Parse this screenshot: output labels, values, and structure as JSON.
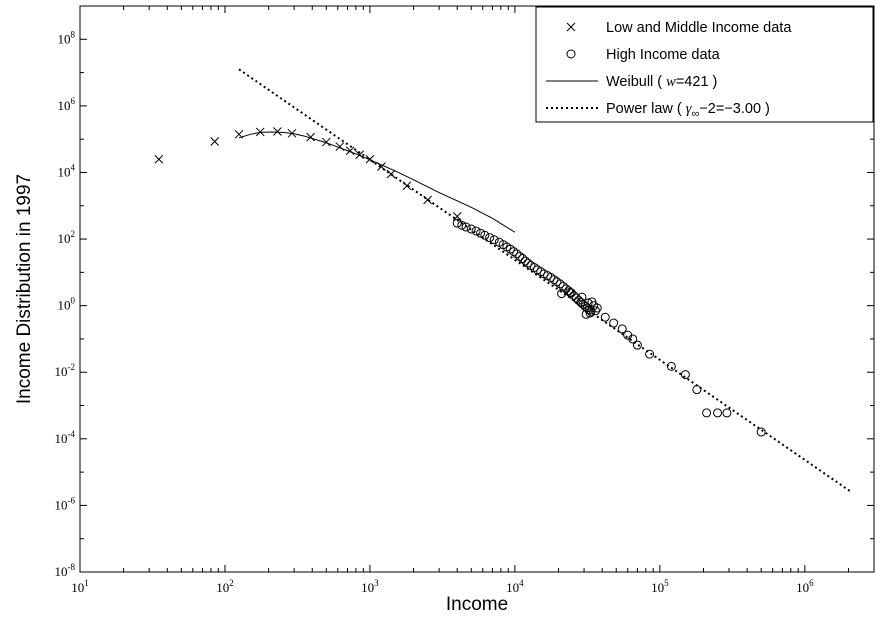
{
  "chart_data": {
    "type": "scatter",
    "xlabel": "Income",
    "ylabel": "Income Distribution in 1997",
    "x_scale": "log",
    "y_scale": "log",
    "xlim": [
      10,
      3000000
    ],
    "ylim": [
      1e-08,
      1000000000.0
    ],
    "x_ticks": [
      {
        "value": 10,
        "base": "10",
        "exp": "1"
      },
      {
        "value": 100,
        "base": "10",
        "exp": "2"
      },
      {
        "value": 1000,
        "base": "10",
        "exp": "3"
      },
      {
        "value": 10000,
        "base": "10",
        "exp": "4"
      },
      {
        "value": 100000,
        "base": "10",
        "exp": "5"
      },
      {
        "value": 1000000,
        "base": "10",
        "exp": "6"
      }
    ],
    "y_ticks": [
      {
        "value": 1e-08,
        "base": "10",
        "exp": "-8"
      },
      {
        "value": 1e-06,
        "base": "10",
        "exp": "-6"
      },
      {
        "value": 0.0001,
        "base": "10",
        "exp": "-4"
      },
      {
        "value": 0.01,
        "base": "10",
        "exp": "-2"
      },
      {
        "value": 1,
        "base": "10",
        "exp": "0"
      },
      {
        "value": 100,
        "base": "10",
        "exp": "2"
      },
      {
        "value": 10000,
        "base": "10",
        "exp": "4"
      },
      {
        "value": 1000000,
        "base": "10",
        "exp": "6"
      },
      {
        "value": 100000000,
        "base": "10",
        "exp": "8"
      }
    ],
    "grid": false,
    "legend_position": "top-right",
    "legend": [
      {
        "key": "low",
        "marker": "x",
        "parts": [
          {
            "text": "Low and Middle Income data",
            "italic": false
          }
        ]
      },
      {
        "key": "high",
        "marker": "o",
        "parts": [
          {
            "text": "High Income data",
            "italic": false
          }
        ]
      },
      {
        "key": "weibull",
        "marker": "solid-line",
        "parts": [
          {
            "text": "Weibull ( ",
            "italic": false
          },
          {
            "text": "w",
            "italic": true
          },
          {
            "text": "=421 )",
            "italic": false
          }
        ]
      },
      {
        "key": "power",
        "marker": "dotted-line",
        "parts": [
          {
            "text": "Power law ( ",
            "italic": false
          },
          {
            "text": "γ",
            "italic": true
          },
          {
            "text": "∞",
            "italic": false,
            "sub": true
          },
          {
            "text": "−2=−3.00 )",
            "italic": false
          }
        ]
      }
    ],
    "series": [
      {
        "name": "Low and Middle Income data",
        "marker": "x",
        "color": "#000000",
        "points": [
          [
            35,
            25000
          ],
          [
            85,
            85000
          ],
          [
            125,
            140000
          ],
          [
            175,
            165000
          ],
          [
            230,
            170000
          ],
          [
            290,
            150000
          ],
          [
            390,
            115000
          ],
          [
            500,
            82000
          ],
          [
            620,
            60000
          ],
          [
            730,
            45000
          ],
          [
            850,
            34000
          ],
          [
            1000,
            25000
          ],
          [
            1200,
            15000
          ],
          [
            1400,
            9000
          ],
          [
            1800,
            4000
          ],
          [
            2500,
            1500
          ],
          [
            4000,
            480
          ]
        ]
      },
      {
        "name": "High Income data",
        "marker": "o",
        "color": "#000000",
        "points": [
          [
            4000,
            300
          ],
          [
            4300,
            260
          ],
          [
            4600,
            230
          ],
          [
            5000,
            200
          ],
          [
            5400,
            175
          ],
          [
            5800,
            150
          ],
          [
            6200,
            130
          ],
          [
            6700,
            110
          ],
          [
            7200,
            95
          ],
          [
            7800,
            80
          ],
          [
            8300,
            68
          ],
          [
            8800,
            58
          ],
          [
            9300,
            50
          ],
          [
            9800,
            42
          ],
          [
            10300,
            36
          ],
          [
            10800,
            30
          ],
          [
            11300,
            26
          ],
          [
            11800,
            22
          ],
          [
            12300,
            19
          ],
          [
            12900,
            16
          ],
          [
            13600,
            14
          ],
          [
            14300,
            12
          ],
          [
            15100,
            10.5
          ],
          [
            15900,
            9
          ],
          [
            16800,
            8
          ],
          [
            17700,
            7
          ],
          [
            18600,
            6
          ],
          [
            19500,
            5.2
          ],
          [
            20500,
            4.5
          ],
          [
            21500,
            3.8
          ],
          [
            22500,
            3.2
          ],
          [
            23500,
            2.8
          ],
          [
            24500,
            2.4
          ],
          [
            25500,
            2.0
          ],
          [
            26500,
            1.7
          ],
          [
            27500,
            1.45
          ],
          [
            28500,
            1.25
          ],
          [
            29500,
            1.1
          ],
          [
            30500,
            0.95
          ],
          [
            31500,
            0.85
          ],
          [
            32500,
            0.75
          ],
          [
            33500,
            0.68
          ],
          [
            21000,
            2.3
          ],
          [
            24000,
            2.5
          ],
          [
            29000,
            1.8
          ],
          [
            32000,
            1.2
          ],
          [
            34000,
            1.3
          ],
          [
            35000,
            1.0
          ],
          [
            31000,
            0.55
          ],
          [
            33000,
            0.6
          ],
          [
            36000,
            0.7
          ],
          [
            37000,
            0.85
          ],
          [
            42000,
            0.45
          ],
          [
            48000,
            0.3
          ],
          [
            55000,
            0.2
          ],
          [
            60000,
            0.13
          ],
          [
            65000,
            0.1
          ],
          [
            70000,
            0.065
          ],
          [
            85000,
            0.035
          ],
          [
            120000,
            0.015
          ],
          [
            150000,
            0.0085
          ],
          [
            180000,
            0.003
          ],
          [
            210000,
            0.0006
          ],
          [
            250000,
            0.0006
          ],
          [
            290000,
            0.0006
          ],
          [
            500000,
            0.00016
          ]
        ]
      },
      {
        "name": "Weibull ( w=421 )",
        "line": "solid",
        "color": "#000000",
        "points": [
          [
            125,
            110000
          ],
          [
            150,
            140000
          ],
          [
            175,
            160000
          ],
          [
            210,
            165000
          ],
          [
            250,
            160000
          ],
          [
            300,
            145000
          ],
          [
            350,
            125000
          ],
          [
            400,
            105000
          ],
          [
            500,
            78000
          ],
          [
            600,
            58000
          ],
          [
            700,
            45000
          ],
          [
            800,
            36000
          ],
          [
            1000,
            24000
          ],
          [
            1500,
            11000
          ],
          [
            2000,
            6000
          ],
          [
            3000,
            2500
          ],
          [
            5000,
            900
          ],
          [
            7000,
            420
          ],
          [
            10000,
            160
          ]
        ]
      },
      {
        "name": "Power law ( γ∞−2=−3.00 )",
        "line": "dotted",
        "color": "#000000",
        "points": [
          [
            125,
            12500000
          ],
          [
            2100000,
            2.5e-06
          ]
        ]
      }
    ]
  }
}
